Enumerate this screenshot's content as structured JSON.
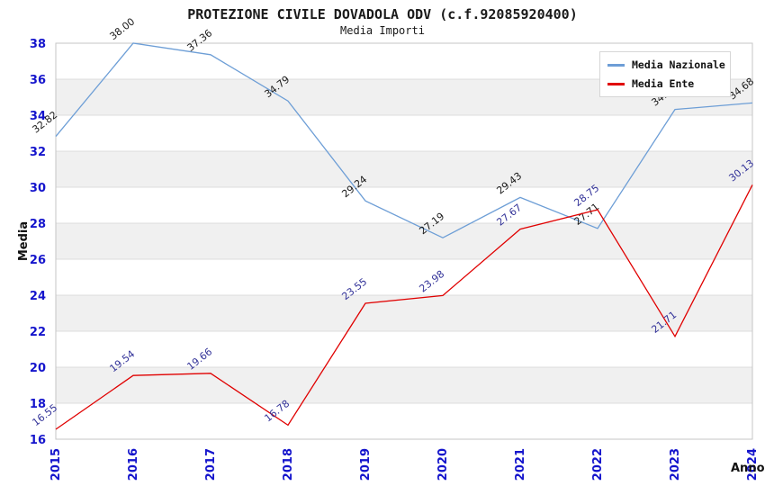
{
  "header": {
    "title": "PROTEZIONE CIVILE DOVADOLA ODV (c.f.92085920400)",
    "subtitle": "Media Importi"
  },
  "chart_data": {
    "type": "line",
    "title": "PROTEZIONE CIVILE DOVADOLA ODV (c.f.92085920400)",
    "subtitle": "Media Importi",
    "xlabel": "Anno",
    "ylabel": "Media",
    "x": [
      2015,
      2016,
      2017,
      2018,
      2019,
      2020,
      2021,
      2022,
      2023,
      2024
    ],
    "series": [
      {
        "name": "Media Nazionale",
        "color": "#6D9ED6",
        "label_color": "#1a1a1a",
        "values": [
          32.82,
          38.0,
          37.36,
          34.79,
          29.24,
          27.19,
          29.43,
          27.71,
          34.32,
          34.68
        ]
      },
      {
        "name": "Media Ente",
        "color": "#E00000",
        "label_color": "#333399",
        "values": [
          16.55,
          19.54,
          19.66,
          16.78,
          23.55,
          23.98,
          27.67,
          28.75,
          21.71,
          30.13
        ]
      }
    ],
    "ylim": [
      16,
      38
    ],
    "ytick_step": 2,
    "grid": true,
    "legend_position": "top-right",
    "colors": {
      "band": "#f0f0f0",
      "grid": "#dcdcdc",
      "border": "#c6c6c6",
      "tick_label": "#1414CC",
      "axis_label": "#111111",
      "background": "#ffffff"
    }
  }
}
